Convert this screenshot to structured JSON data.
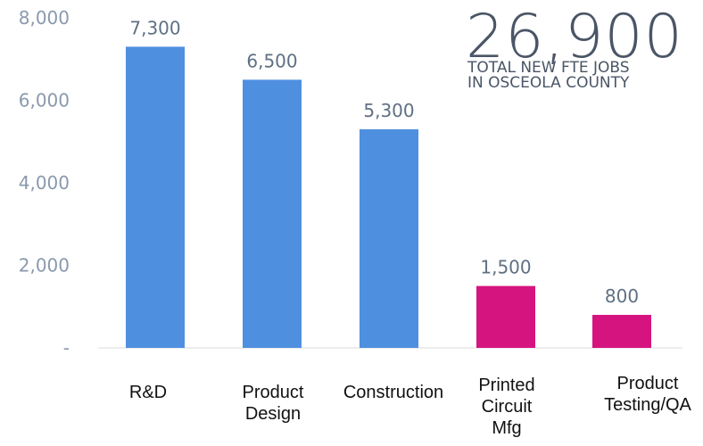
{
  "chart_data": {
    "type": "bar",
    "categories": [
      "R&D",
      "Product\nDesign",
      "Construction",
      "Printed\nCircuit\nMfg",
      "Product\nTesting/QA"
    ],
    "values": [
      7300,
      6500,
      5300,
      1500,
      800
    ],
    "data_labels": [
      "7,300",
      "6,500",
      "5,300",
      "1,500",
      "800"
    ],
    "bar_colors": [
      "#4f8fe0",
      "#4f8fe0",
      "#4f8fe0",
      "#d6147f",
      "#d6147f"
    ],
    "ylim": [
      0,
      8000
    ],
    "yticks": [
      0,
      2000,
      4000,
      6000,
      8000
    ],
    "ytick_labels": [
      "-",
      "2,000",
      "4,000",
      "6,000",
      "8,000"
    ],
    "grid": false,
    "xlabel": "",
    "ylabel": "",
    "title": ""
  },
  "callout": {
    "number": "26,900",
    "caption_line1": "TOTAL NEW FTE JOBS",
    "caption_line2": "IN OSCEOLA COUNTY"
  }
}
